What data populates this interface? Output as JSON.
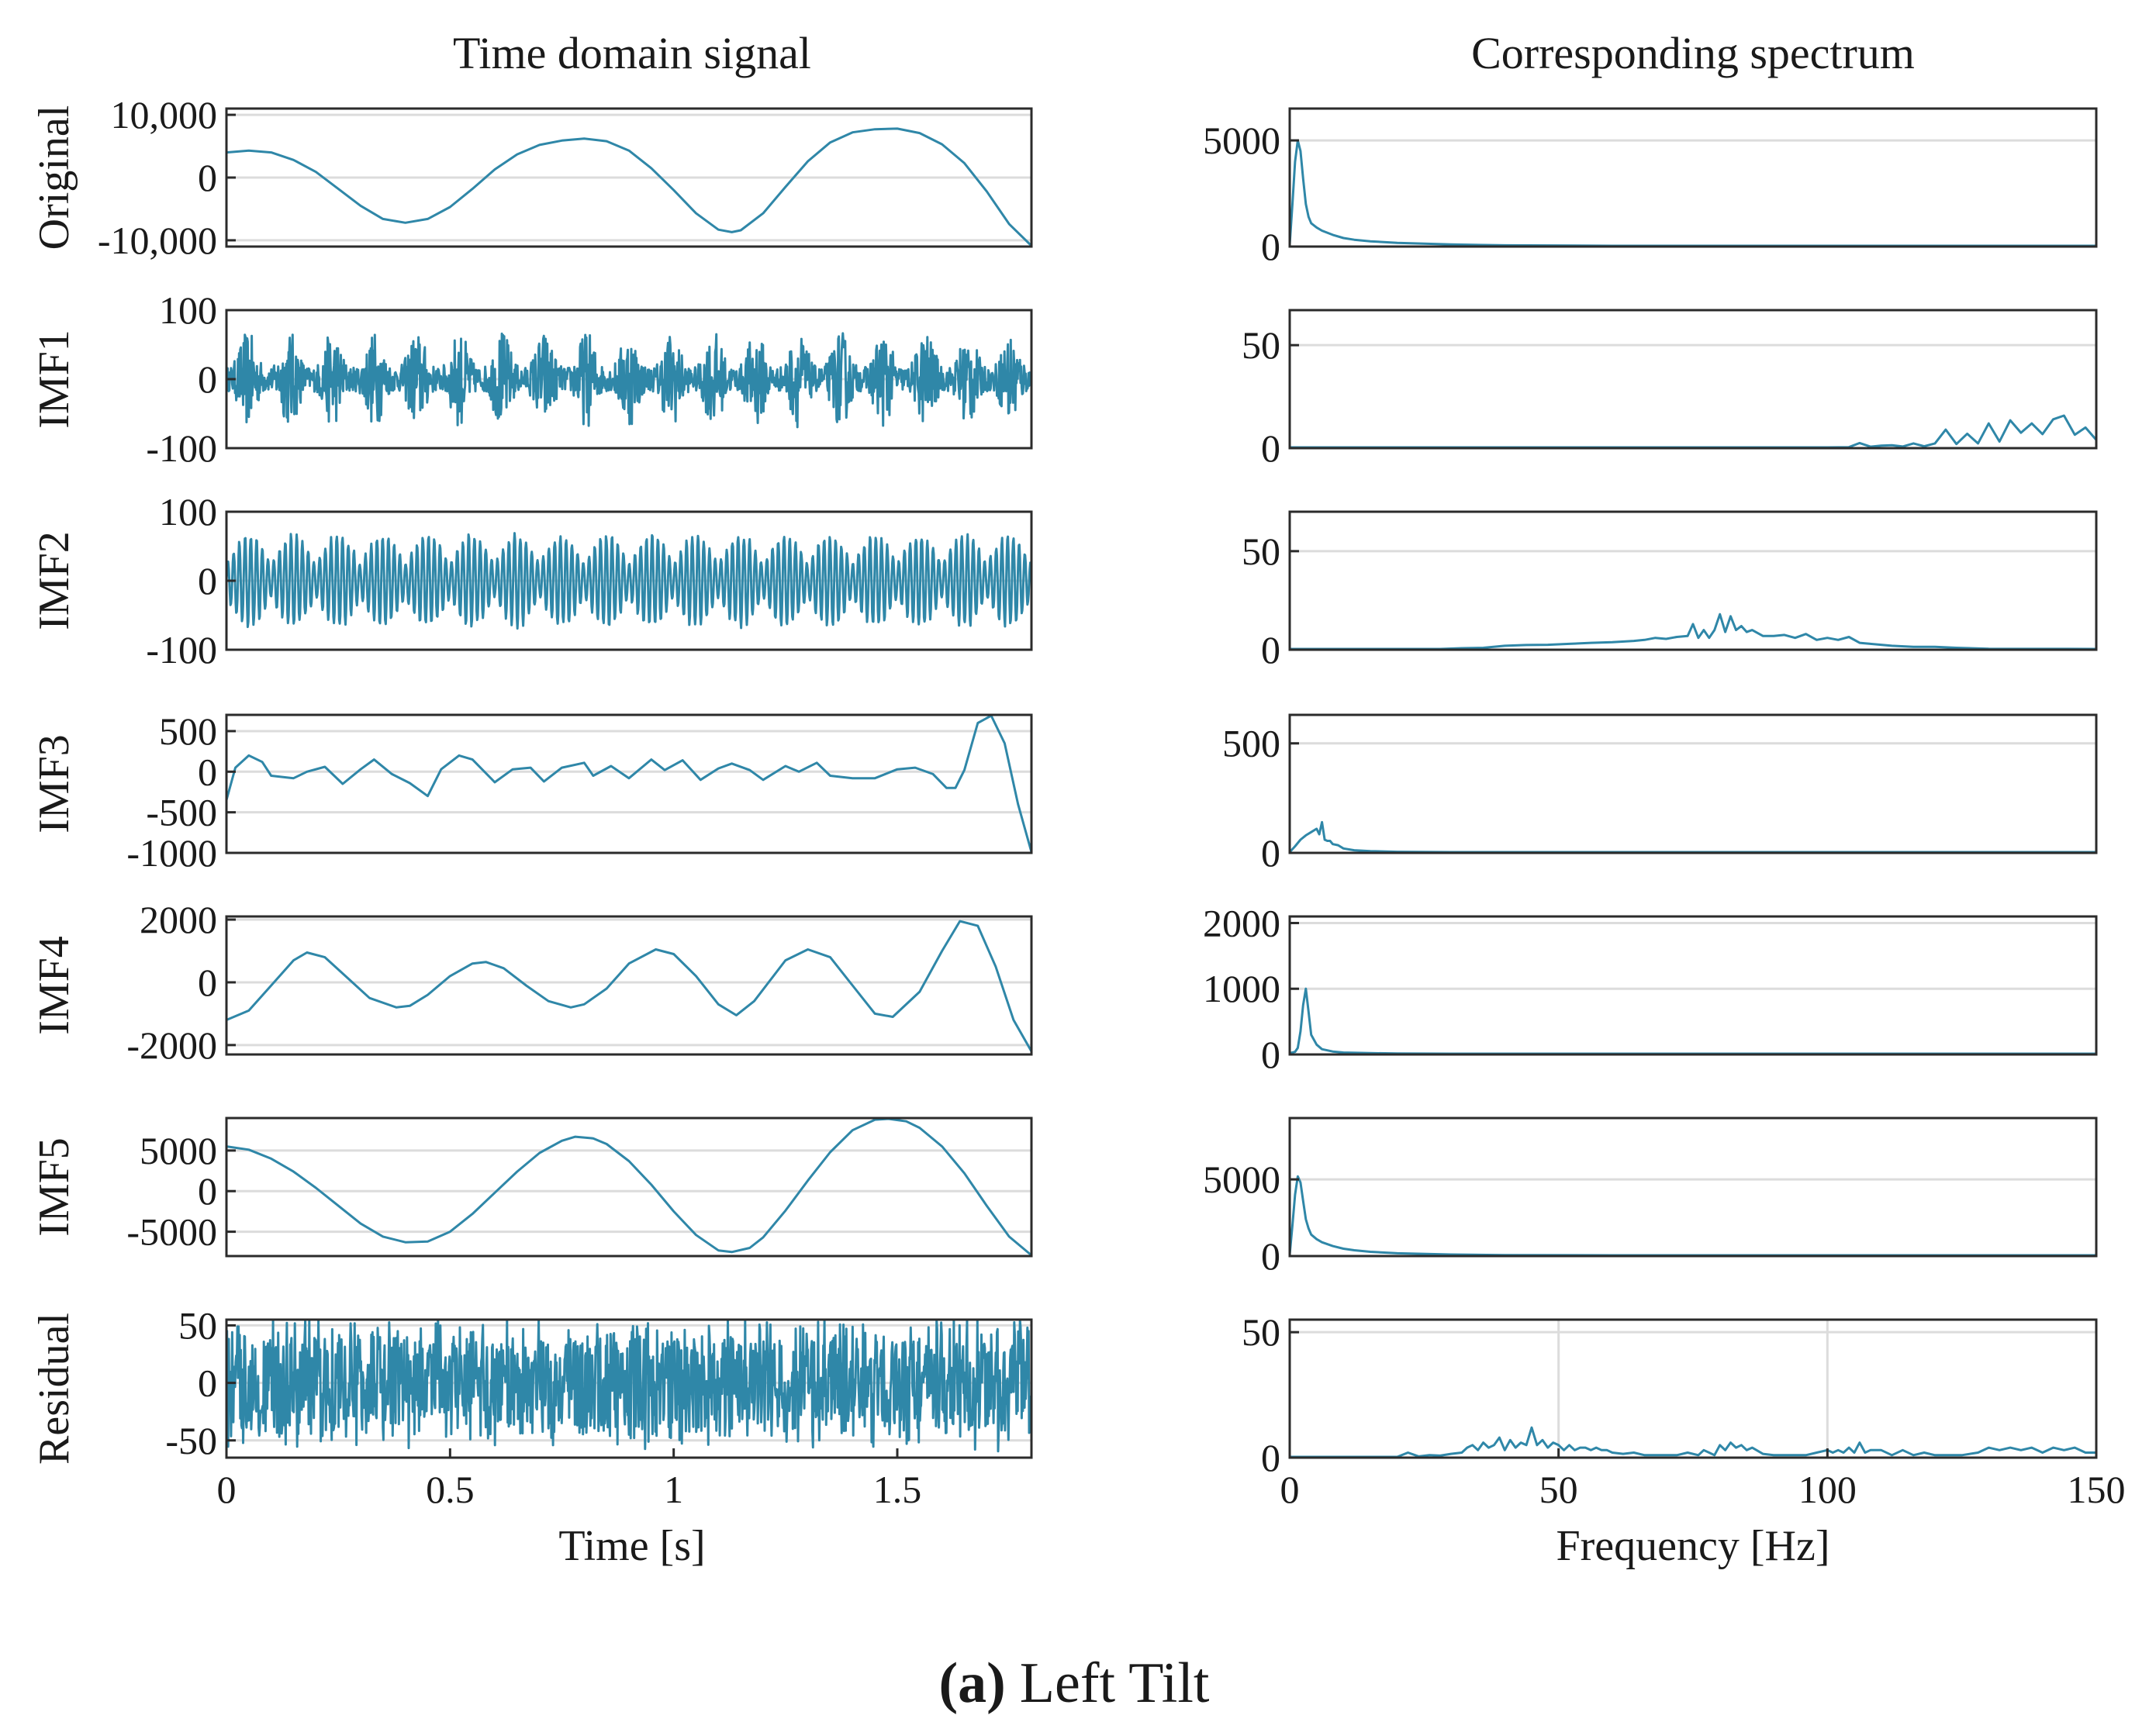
{
  "figure": {
    "left_column_title": "Time domain signal",
    "right_column_title": "Corresponding spectrum",
    "time_xlabel": "Time [s]",
    "freq_xlabel": "Frequency [Hz]",
    "caption_letter": "(a)",
    "caption_text": "Left Tilt",
    "line_color": "#2f87a8"
  },
  "chart_data": [
    {
      "type": "line",
      "panel": "time",
      "row_label": "Original",
      "xlim": [
        0,
        1.8
      ],
      "ylim": [
        -11000,
        11000
      ],
      "yticks": [
        10000,
        0,
        -10000
      ],
      "ytick_labels": [
        "10,000",
        "0",
        "-10,000"
      ],
      "x": [
        0,
        0.05,
        0.1,
        0.15,
        0.2,
        0.25,
        0.3,
        0.35,
        0.4,
        0.45,
        0.5,
        0.55,
        0.6,
        0.65,
        0.7,
        0.75,
        0.8,
        0.85,
        0.9,
        0.95,
        1.0,
        1.05,
        1.1,
        1.13,
        1.15,
        1.2,
        1.25,
        1.3,
        1.35,
        1.4,
        1.45,
        1.5,
        1.55,
        1.6,
        1.65,
        1.7,
        1.75,
        1.8
      ],
      "y": [
        4000,
        4300,
        4000,
        2800,
        900,
        -1800,
        -4500,
        -6600,
        -7200,
        -6600,
        -4700,
        -1800,
        1300,
        3700,
        5200,
        5900,
        6200,
        5800,
        4300,
        1500,
        -2000,
        -5700,
        -8300,
        -8700,
        -8400,
        -5700,
        -1500,
        2600,
        5600,
        7200,
        7700,
        7800,
        7100,
        5300,
        2300,
        -2200,
        -7400,
        -11000
      ]
    },
    {
      "type": "line",
      "panel": "time",
      "row_label": "IMF1",
      "synthetic": "am-noise",
      "xlim": [
        0,
        1.8
      ],
      "ylim": [
        -100,
        100
      ],
      "yticks": [
        100,
        0,
        -100
      ],
      "ytick_labels": [
        "100",
        "0",
        "-100"
      ],
      "amplitude_peak": 70,
      "burst_count": 19
    },
    {
      "type": "line",
      "panel": "time",
      "row_label": "IMF2",
      "synthetic": "am-sine",
      "xlim": [
        0,
        1.8
      ],
      "ylim": [
        -100,
        100
      ],
      "yticks": [
        100,
        0,
        -100
      ],
      "ytick_labels": [
        "100",
        "0",
        "-100"
      ],
      "amplitude_peak": 70,
      "burst_count": 18
    },
    {
      "type": "line",
      "panel": "time",
      "row_label": "IMF3",
      "xlim": [
        0,
        1.8
      ],
      "ylim": [
        -1000,
        700
      ],
      "yticks": [
        500,
        0,
        -500,
        -1000
      ],
      "ytick_labels": [
        "500",
        "0",
        "-500",
        "-1000"
      ],
      "x": [
        0,
        0.02,
        0.05,
        0.08,
        0.1,
        0.15,
        0.18,
        0.22,
        0.26,
        0.3,
        0.33,
        0.37,
        0.41,
        0.45,
        0.48,
        0.52,
        0.55,
        0.6,
        0.64,
        0.68,
        0.71,
        0.75,
        0.8,
        0.82,
        0.86,
        0.9,
        0.95,
        0.98,
        1.02,
        1.06,
        1.1,
        1.13,
        1.17,
        1.2,
        1.25,
        1.28,
        1.32,
        1.35,
        1.4,
        1.45,
        1.5,
        1.54,
        1.58,
        1.61,
        1.63,
        1.65,
        1.68,
        1.71,
        1.74,
        1.77,
        1.8
      ],
      "y": [
        -350,
        50,
        200,
        120,
        -50,
        -80,
        0,
        60,
        -150,
        30,
        150,
        -30,
        -140,
        -300,
        30,
        200,
        150,
        -130,
        30,
        50,
        -120,
        50,
        110,
        -50,
        70,
        -80,
        150,
        20,
        140,
        -100,
        40,
        100,
        20,
        -100,
        70,
        0,
        110,
        -50,
        -80,
        -80,
        30,
        50,
        -30,
        -200,
        -200,
        20,
        600,
        700,
        350,
        -400,
        -1000
      ]
    },
    {
      "type": "line",
      "panel": "time",
      "row_label": "IMF4",
      "xlim": [
        0,
        1.8
      ],
      "ylim": [
        -2300,
        2100
      ],
      "yticks": [
        2000,
        0,
        -2000
      ],
      "ytick_labels": [
        "2000",
        "0",
        "-2000"
      ],
      "x": [
        0,
        0.05,
        0.1,
        0.15,
        0.18,
        0.22,
        0.27,
        0.32,
        0.38,
        0.41,
        0.45,
        0.5,
        0.55,
        0.58,
        0.62,
        0.67,
        0.72,
        0.77,
        0.8,
        0.85,
        0.9,
        0.96,
        1.0,
        1.05,
        1.1,
        1.14,
        1.18,
        1.25,
        1.3,
        1.35,
        1.4,
        1.45,
        1.49,
        1.55,
        1.6,
        1.64,
        1.68,
        1.72,
        1.76,
        1.8
      ],
      "y": [
        -1200,
        -900,
        -100,
        700,
        950,
        800,
        150,
        -500,
        -800,
        -750,
        -400,
        200,
        600,
        650,
        450,
        -100,
        -600,
        -800,
        -700,
        -200,
        600,
        1050,
        900,
        200,
        -700,
        -1050,
        -600,
        700,
        1050,
        800,
        -100,
        -1000,
        -1100,
        -300,
        1000,
        1950,
        1800,
        500,
        -1200,
        -2200
      ]
    },
    {
      "type": "line",
      "panel": "time",
      "row_label": "IMF5",
      "xlim": [
        0,
        1.8
      ],
      "ylim": [
        -8000,
        9000
      ],
      "yticks": [
        5000,
        0,
        -5000
      ],
      "ytick_labels": [
        "5000",
        "0",
        "-5000"
      ],
      "x": [
        0,
        0.05,
        0.1,
        0.15,
        0.2,
        0.25,
        0.3,
        0.35,
        0.4,
        0.45,
        0.5,
        0.55,
        0.6,
        0.65,
        0.7,
        0.75,
        0.78,
        0.82,
        0.85,
        0.9,
        0.95,
        1.0,
        1.05,
        1.1,
        1.13,
        1.17,
        1.2,
        1.25,
        1.3,
        1.35,
        1.4,
        1.45,
        1.48,
        1.52,
        1.55,
        1.6,
        1.65,
        1.7,
        1.75,
        1.8
      ],
      "y": [
        5500,
        5100,
        4000,
        2400,
        400,
        -1800,
        -4000,
        -5600,
        -6300,
        -6200,
        -5000,
        -2800,
        -200,
        2400,
        4700,
        6200,
        6700,
        6500,
        5800,
        3700,
        800,
        -2500,
        -5400,
        -7300,
        -7500,
        -7000,
        -5700,
        -2400,
        1300,
        4800,
        7500,
        8800,
        9000,
        8600,
        7800,
        5500,
        2200,
        -1800,
        -5600,
        -8000
      ]
    },
    {
      "type": "line",
      "panel": "time",
      "row_label": "Residual",
      "synthetic": "noise",
      "xlim": [
        0,
        1.8
      ],
      "ylim": [
        -65,
        55
      ],
      "yticks": [
        50,
        0,
        -50
      ],
      "ytick_labels": [
        "50",
        "0",
        "-50"
      ],
      "xticks": [
        0,
        0.5,
        1,
        1.5
      ],
      "xtick_labels": [
        "0",
        "0.5",
        "1",
        "1.5"
      ],
      "amplitude_peak": 60
    },
    {
      "type": "line",
      "panel": "spectrum",
      "row_label": "Original",
      "xlim": [
        0,
        150
      ],
      "ylim": [
        0,
        6500
      ],
      "yticks": [
        5000,
        0
      ],
      "ytick_labels": [
        "5000",
        "0"
      ],
      "x": [
        0,
        0.5,
        1,
        1.5,
        2,
        2.5,
        3,
        3.5,
        4,
        5,
        6,
        8,
        10,
        12,
        15,
        20,
        30,
        40,
        60,
        80,
        100,
        150
      ],
      "y": [
        100,
        2000,
        4000,
        5000,
        4500,
        3200,
        2000,
        1400,
        1100,
        900,
        750,
        550,
        400,
        320,
        250,
        170,
        100,
        60,
        30,
        15,
        10,
        5
      ]
    },
    {
      "type": "line",
      "panel": "spectrum",
      "row_label": "IMF1",
      "xlim": [
        0,
        150
      ],
      "ylim": [
        0,
        67
      ],
      "yticks": [
        50,
        0
      ],
      "ytick_labels": [
        "50",
        "0"
      ],
      "x": [
        0,
        100,
        102,
        104,
        106,
        108,
        110,
        112,
        114,
        116,
        118,
        120,
        122,
        124,
        126,
        128,
        130,
        132,
        134,
        136,
        138,
        140,
        142,
        144,
        146,
        148,
        150
      ],
      "y": [
        0,
        0,
        0.4,
        0.5,
        2.5,
        0.7,
        1.2,
        1.4,
        0.8,
        2.3,
        0.9,
        2.3,
        9,
        2,
        7,
        2.3,
        12,
        3.2,
        13.5,
        7.5,
        12,
        6.8,
        14,
        15.8,
        6.5,
        10,
        4
      ]
    },
    {
      "type": "line",
      "panel": "spectrum",
      "row_label": "IMF2",
      "xlim": [
        0,
        150
      ],
      "ylim": [
        0,
        70
      ],
      "yticks": [
        50,
        0
      ],
      "ytick_labels": [
        "50",
        "0"
      ],
      "x": [
        0,
        28,
        32,
        36,
        40,
        44,
        48,
        52,
        56,
        60,
        64,
        66,
        68,
        70,
        72,
        74,
        75,
        76,
        77,
        78,
        79,
        80,
        81,
        82,
        83,
        84,
        85,
        86,
        88,
        90,
        92,
        94,
        96,
        98,
        100,
        102,
        104,
        106,
        108,
        112,
        116,
        120,
        124,
        130,
        150
      ],
      "y": [
        0,
        0,
        0.8,
        1,
        2,
        2.4,
        2.5,
        3,
        3.5,
        3.8,
        4.5,
        5,
        6,
        5.5,
        6.5,
        7,
        13,
        6,
        10,
        6,
        10,
        18,
        9,
        17,
        10,
        12,
        9,
        10,
        7,
        7,
        7.5,
        6,
        8,
        5,
        6,
        5,
        6.5,
        3.5,
        3,
        2,
        1.5,
        1.5,
        1,
        0.5,
        0
      ]
    },
    {
      "type": "line",
      "panel": "spectrum",
      "row_label": "IMF3",
      "xlim": [
        0,
        150
      ],
      "ylim": [
        0,
        630
      ],
      "yticks": [
        500,
        0
      ],
      "ytick_labels": [
        "500",
        "0"
      ],
      "x": [
        0,
        1,
        2,
        3,
        4,
        5,
        5.5,
        6,
        6.5,
        7,
        7.5,
        8,
        9,
        10,
        12,
        15,
        20,
        30,
        50,
        150
      ],
      "y": [
        0,
        30,
        60,
        80,
        95,
        110,
        85,
        140,
        60,
        55,
        55,
        40,
        35,
        20,
        12,
        8,
        5,
        3,
        1,
        0
      ]
    },
    {
      "type": "line",
      "panel": "spectrum",
      "row_label": "IMF4",
      "xlim": [
        0,
        150
      ],
      "ylim": [
        0,
        2100
      ],
      "yticks": [
        2000,
        1000,
        0
      ],
      "ytick_labels": [
        "2000",
        "1000",
        "0"
      ],
      "x": [
        0,
        1,
        1.5,
        2,
        2.5,
        3,
        3.5,
        4,
        5,
        6,
        8,
        10,
        15,
        20,
        30,
        50,
        150
      ],
      "y": [
        20,
        40,
        100,
        350,
        750,
        1000,
        650,
        300,
        150,
        80,
        45,
        30,
        20,
        15,
        10,
        5,
        2
      ]
    },
    {
      "type": "line",
      "panel": "spectrum",
      "row_label": "IMF5",
      "xlim": [
        0,
        150
      ],
      "ylim": [
        0,
        9000
      ],
      "yticks": [
        5000,
        0
      ],
      "ytick_labels": [
        "5000",
        "0"
      ],
      "x": [
        0,
        0.5,
        1,
        1.5,
        2,
        2.5,
        3,
        3.5,
        4,
        5,
        6,
        8,
        10,
        12,
        15,
        20,
        30,
        40,
        60,
        80,
        100,
        150
      ],
      "y": [
        100,
        2000,
        4000,
        5200,
        4800,
        3600,
        2400,
        1800,
        1400,
        1100,
        900,
        650,
        480,
        380,
        280,
        180,
        100,
        60,
        30,
        15,
        10,
        5
      ]
    },
    {
      "type": "line",
      "panel": "spectrum",
      "row_label": "Residual",
      "xlim": [
        0,
        150
      ],
      "ylim": [
        0,
        55
      ],
      "yticks": [
        50,
        0
      ],
      "ytick_labels": [
        "50",
        "0"
      ],
      "xticks": [
        0,
        50,
        100,
        150
      ],
      "xtick_labels": [
        "0",
        "50",
        "100",
        "150"
      ],
      "grid_x": [
        50,
        100
      ],
      "x": [
        0,
        20,
        22,
        24,
        26,
        28,
        30,
        32,
        33,
        34,
        35,
        36,
        37,
        38,
        39,
        40,
        41,
        42,
        43,
        44,
        45,
        46,
        47,
        48,
        49,
        50,
        51,
        52,
        53,
        54,
        55,
        56,
        57,
        58,
        59,
        60,
        62,
        64,
        66,
        68,
        70,
        72,
        74,
        76,
        77,
        78,
        79,
        80,
        81,
        82,
        83,
        84,
        85,
        86,
        88,
        90,
        92,
        94,
        96,
        98,
        100,
        101,
        102,
        103,
        104,
        105,
        106,
        107,
        108,
        110,
        112,
        114,
        116,
        118,
        120,
        125,
        128,
        130,
        132,
        134,
        136,
        138,
        140,
        142,
        144,
        146,
        148,
        150
      ],
      "y": [
        0,
        0,
        2,
        0.5,
        1,
        0.8,
        1.5,
        2,
        4,
        5,
        3,
        6,
        4,
        5,
        8,
        3,
        7,
        4,
        6,
        5,
        12,
        5,
        7,
        4,
        6,
        5,
        3,
        5,
        3,
        4,
        4,
        3,
        4,
        3,
        3,
        2,
        1.5,
        2,
        1,
        1,
        1,
        1,
        2,
        1,
        3,
        2,
        1,
        5,
        3,
        6,
        4,
        5,
        3,
        4,
        1.5,
        1,
        1,
        1,
        1,
        2,
        3,
        2,
        3,
        2,
        4,
        2,
        6,
        2,
        3,
        3,
        1,
        3,
        1,
        2,
        1,
        1,
        2,
        4,
        3,
        4,
        3,
        4,
        2,
        4,
        3,
        4,
        2,
        2
      ]
    }
  ]
}
